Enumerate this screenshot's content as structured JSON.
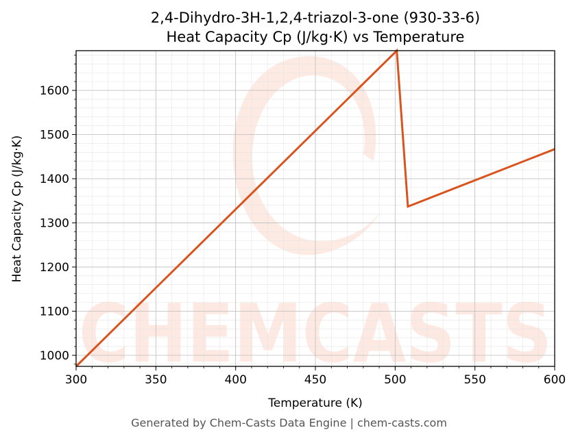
{
  "chart_data": {
    "type": "line",
    "title": "2,4-Dihydro-3H-1,2,4-triazol-3-one (930-33-6)",
    "subtitle": "Heat Capacity Cp (J/kg·K) vs Temperature",
    "xlabel": "Temperature (K)",
    "ylabel": "Heat Capacity Cp (J/kg·K)",
    "xlim": [
      300,
      600
    ],
    "ylim": [
      975,
      1690
    ],
    "x_ticks": [
      300,
      350,
      400,
      450,
      500,
      550,
      600
    ],
    "y_ticks": [
      1000,
      1100,
      1200,
      1300,
      1400,
      1500,
      1600
    ],
    "grid": true,
    "series": [
      {
        "color": "#d9531e",
        "points": [
          [
            300,
            975
          ],
          [
            501,
            1690
          ],
          [
            508,
            1337
          ],
          [
            600,
            1467
          ]
        ]
      }
    ]
  },
  "watermark": "CHEMCASTS",
  "footer": "Generated by Chem-Casts Data Engine | chem-casts.com"
}
